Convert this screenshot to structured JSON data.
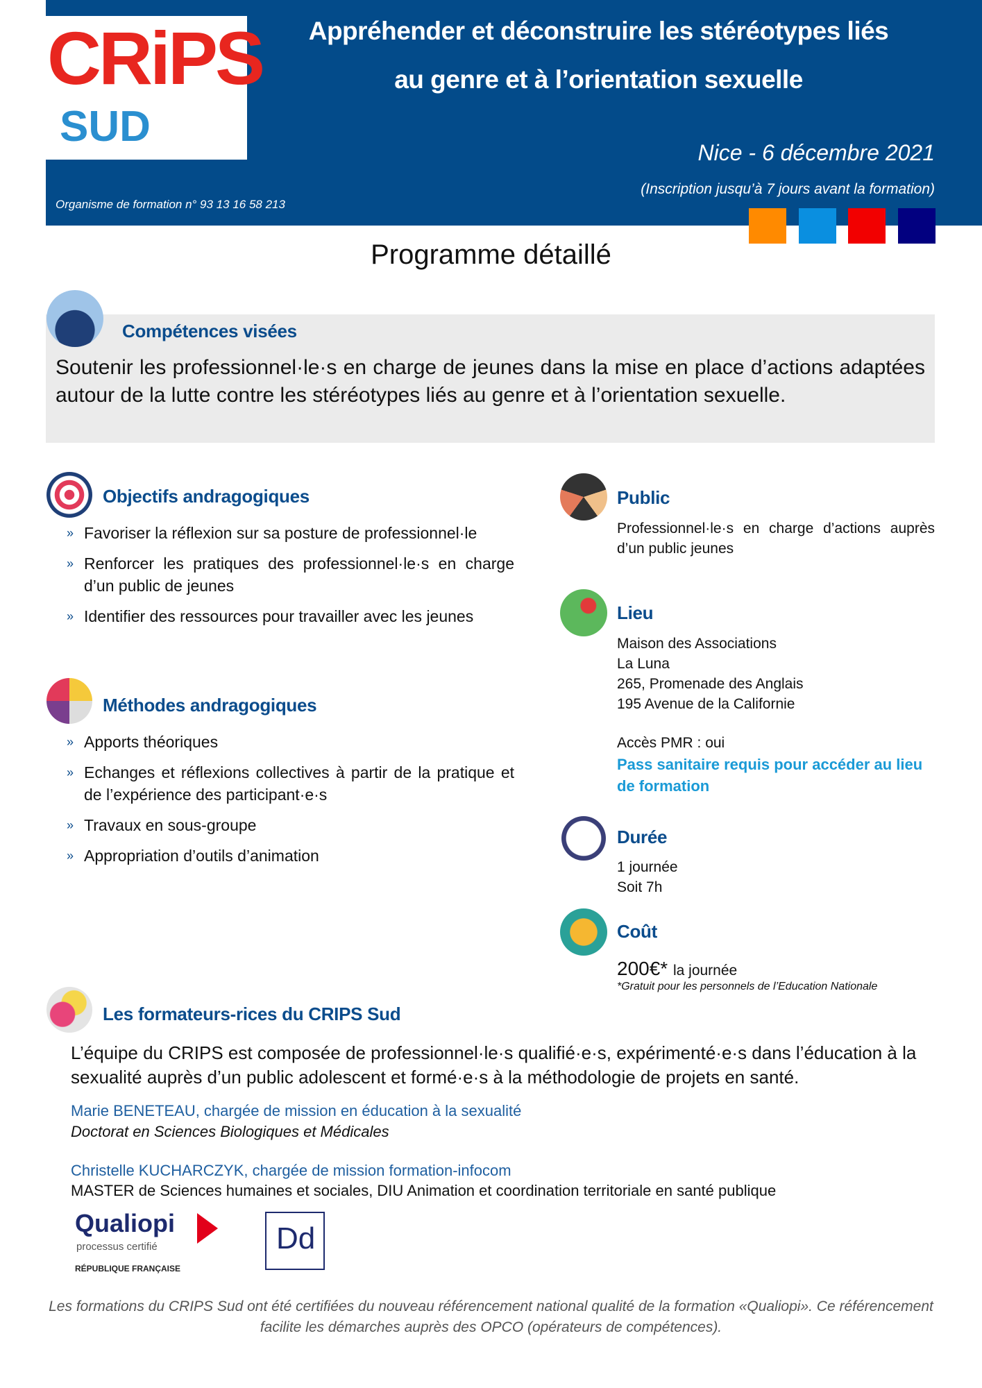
{
  "header": {
    "logo_text": "CRiPS",
    "logo_sub": "SUD",
    "title_line1": "Appréhender et déconstruire les stéréotypes liés",
    "title_line2": "au genre et à l’orientation sexuelle",
    "date": "Nice - 6 décembre 2021",
    "registration": "(Inscription jusqu’à 7 jours avant la formation)",
    "org_number": "Organisme de formation n° 93 13 16 58 213",
    "color_squares": [
      "#ff8a00",
      "#0a8fe0",
      "#f20000",
      "#020080"
    ]
  },
  "page_title": "Programme détaillé",
  "competences": {
    "heading": "Compétences visées",
    "text": "Soutenir les professionnel·le·s en charge de jeunes dans la mise en place d’actions adaptées autour de la lutte contre les stéréotypes liés au genre et à l’orientation sexuelle."
  },
  "objectifs": {
    "heading": "Objectifs andragogiques",
    "items": [
      "Favoriser la réflexion sur sa posture de professionnel·le",
      "Renforcer les pratiques des professionnel·le·s en charge d’un public de jeunes",
      "Identifier des ressources pour travailler avec les jeunes"
    ]
  },
  "methodes": {
    "heading": "Méthodes andragogiques",
    "items": [
      "Apports théoriques",
      "Echanges et réflexions collectives à partir de la pratique et de l’expérience des participant·e·s",
      "Travaux en sous-groupe",
      "Appropriation d’outils d’animation"
    ]
  },
  "public": {
    "heading": "Public",
    "text": "Professionnel·le·s en charge d’actions auprès d’un public jeunes"
  },
  "lieu": {
    "heading": "Lieu",
    "lines": [
      "Maison des Associations",
      "La Luna",
      "265, Promenade des Anglais",
      "195 Avenue de la Californie"
    ],
    "pmr": "Accès PMR : oui",
    "pass": "Pass sanitaire requis pour accéder au lieu de formation"
  },
  "duree": {
    "heading": "Durée",
    "lines": [
      "1 journée",
      "Soit 7h"
    ]
  },
  "cout": {
    "heading": "Coût",
    "price": "200€*",
    "unit": "la journée",
    "note": "*Gratuit pour les personnels de l’Education Nationale"
  },
  "formateurs": {
    "heading": "Les formateurs-rices du CRIPS Sud",
    "intro": "L’équipe du CRIPS est composée de professionnel·le·s qualifié·e·s, expérimenté·e·s dans l’éducation à la sexualité auprès d’un public adolescent et formé·e·s à la méthodologie de projets en santé.",
    "people": [
      {
        "name": "Marie BENETEAU, chargée de mission en éducation à la sexualité",
        "degree": "Doctorat en Sciences Biologiques et Médicales"
      },
      {
        "name": "Christelle KUCHARCZYK, chargée de mission formation-infocom",
        "degree": "MASTER de Sciences humaines et sociales, DIU Animation et coordination territoriale en santé publique"
      }
    ]
  },
  "logos": {
    "qualiopi": "Qualiopi",
    "qualiopi_sub": "processus certifié",
    "republique": "RÉPUBLIQUE FRANÇAISE",
    "datadock": "Dd"
  },
  "footer": "Les formations du CRIPS Sud ont été certifiées du nouveau référencement national qualité de la formation «Qualiopi». Ce référencement facilite les démarches auprès des OPCO (opérateurs de compétences)."
}
